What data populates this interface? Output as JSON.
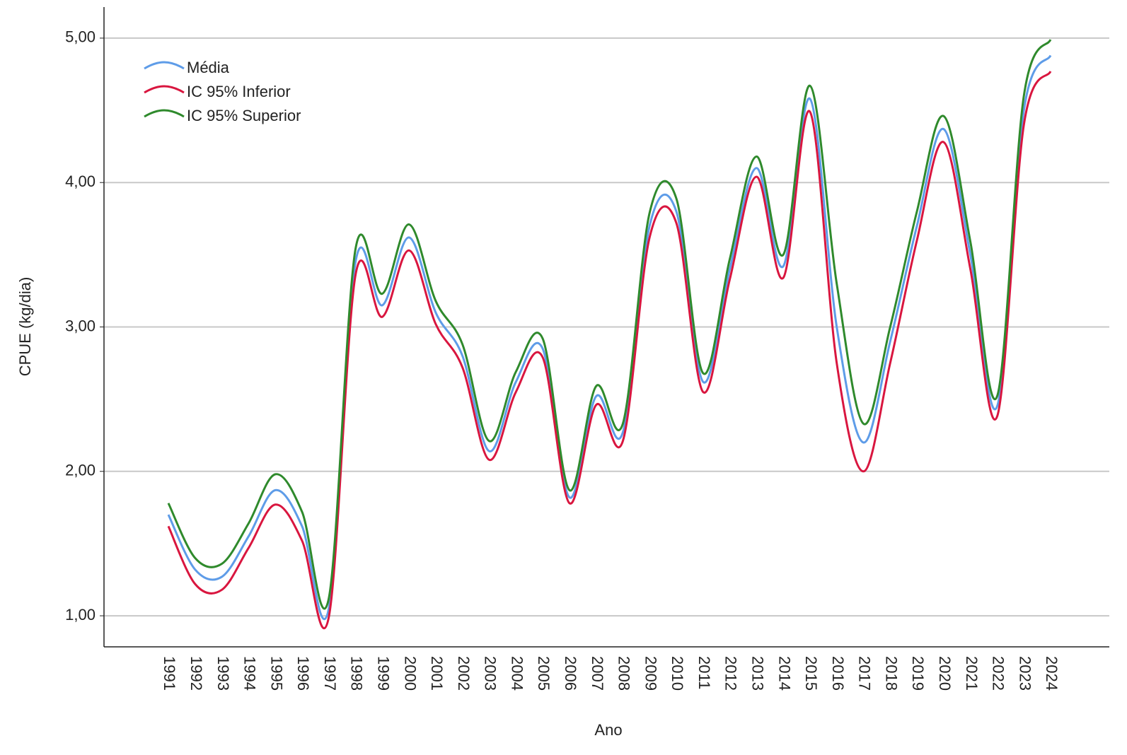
{
  "chart_data": {
    "type": "line",
    "y_label": "CPUE (kg/dia)",
    "x_label": "Ano",
    "categories": [
      "1991",
      "1992",
      "1993",
      "1994",
      "1995",
      "1996",
      "1997",
      "1998",
      "1999",
      "2000",
      "2001",
      "2002",
      "2003",
      "2004",
      "2005",
      "2006",
      "2007",
      "2008",
      "2009",
      "2010",
      "2011",
      "2012",
      "2013",
      "2014",
      "2015",
      "2016",
      "2017",
      "2018",
      "2019",
      "2020",
      "2021",
      "2022",
      "2023",
      "2024"
    ],
    "series": [
      {
        "name": "Média",
        "color": "#5e9ce8",
        "values": [
          1.7,
          1.32,
          1.27,
          1.55,
          1.87,
          1.62,
          1.05,
          3.45,
          3.15,
          3.62,
          3.1,
          2.8,
          2.14,
          2.62,
          2.85,
          1.82,
          2.52,
          2.27,
          3.7,
          3.8,
          2.62,
          3.4,
          4.1,
          3.42,
          4.58,
          3.0,
          2.2,
          2.9,
          3.7,
          4.37,
          3.5,
          2.45,
          4.5,
          4.88
        ]
      },
      {
        "name": "IC 95% Inferior",
        "color": "#d9163f",
        "values": [
          1.62,
          1.22,
          1.18,
          1.47,
          1.77,
          1.52,
          0.99,
          3.36,
          3.07,
          3.53,
          3.02,
          2.72,
          2.08,
          2.55,
          2.79,
          1.78,
          2.46,
          2.21,
          3.62,
          3.72,
          2.55,
          3.33,
          4.04,
          3.34,
          4.49,
          2.75,
          2.0,
          2.75,
          3.6,
          4.28,
          3.4,
          2.38,
          4.4,
          4.77
        ]
      },
      {
        "name": "IC 95% Superior",
        "color": "#2f8a2c",
        "values": [
          1.78,
          1.4,
          1.36,
          1.64,
          1.98,
          1.72,
          1.12,
          3.54,
          3.23,
          3.71,
          3.18,
          2.88,
          2.21,
          2.69,
          2.92,
          1.87,
          2.59,
          2.33,
          3.79,
          3.89,
          2.68,
          3.47,
          4.18,
          3.5,
          4.67,
          3.3,
          2.33,
          3.0,
          3.8,
          4.46,
          3.59,
          2.52,
          4.6,
          4.99
        ]
      }
    ],
    "ylim": [
      0.785,
      5.215
    ],
    "yticks": [
      {
        "value": 1,
        "label": "1,00"
      },
      {
        "value": 2,
        "label": "2,00"
      },
      {
        "value": 3,
        "label": "3,00"
      },
      {
        "value": 4,
        "label": "4,00"
      },
      {
        "value": 5,
        "label": "5,00"
      }
    ],
    "grid": true,
    "smooth": true,
    "legend": "top-left"
  }
}
